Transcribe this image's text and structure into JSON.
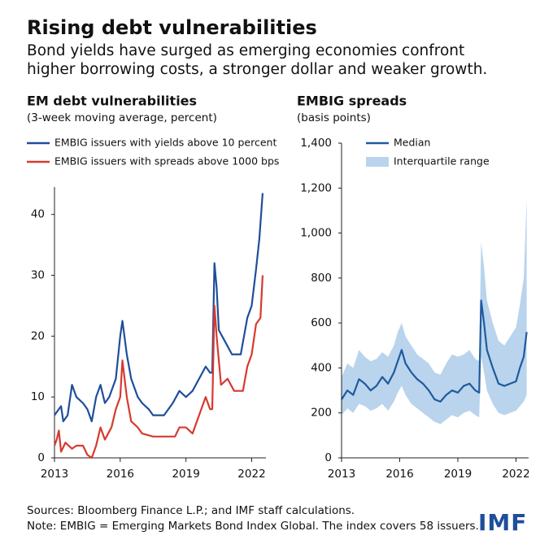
{
  "title": "Rising debt vulnerabilities",
  "subtitle": [
    "Bond yields have surged as emerging economies confront",
    "higher borrowing costs, a stronger dollar and weaker growth."
  ],
  "sources": "Sources: Bloomberg Finance L.P.; and IMF staff calculations.",
  "note": "Note: EMBIG = Emerging Markets Bond Index Global. The index covers 58 issuers.",
  "logo": "IMF",
  "chart_data": [
    {
      "type": "line",
      "title": "EM debt vulnerabilities",
      "subtitle": "(3-week moving average, percent)",
      "legend": "above",
      "xlim": [
        2013,
        2022.65
      ],
      "xticks": [
        2013,
        2016,
        2019,
        2022
      ],
      "ylim": [
        0,
        44.5
      ],
      "yticks": [
        0,
        10,
        20,
        30,
        40
      ],
      "series": [
        {
          "name": "EMBIG issuers with yields above 10 percent",
          "color": "#1f4e9a",
          "x": [
            2013,
            2013.3,
            2013.4,
            2013.6,
            2013.8,
            2014,
            2014.3,
            2014.5,
            2014.7,
            2014.9,
            2015.1,
            2015.3,
            2015.5,
            2015.8,
            2016,
            2016.1,
            2016.3,
            2016.5,
            2016.8,
            2017,
            2017.3,
            2017.5,
            2018,
            2018.4,
            2018.7,
            2019,
            2019.3,
            2019.6,
            2019.9,
            2020.1,
            2020.2,
            2020.3,
            2020.4,
            2020.5,
            2020.8,
            2021.1,
            2021.5,
            2021.8,
            2022,
            2022.2,
            2022.35,
            2022.5
          ],
          "values": [
            7,
            8.5,
            6,
            7,
            12,
            10,
            9,
            8,
            6,
            10,
            12,
            9,
            10,
            13,
            20,
            22.5,
            17,
            13,
            10,
            9,
            8,
            7,
            7,
            9,
            11,
            10,
            11,
            13,
            15,
            14,
            14,
            32,
            28,
            21,
            19,
            17,
            17,
            23,
            25,
            31,
            36,
            43.5
          ]
        },
        {
          "name": "EMBIG issuers with spreads above 1000 bps",
          "color": "#d63a2f",
          "x": [
            2013,
            2013.1,
            2013.2,
            2013.3,
            2013.5,
            2013.8,
            2014,
            2014.3,
            2014.5,
            2014.7,
            2014.9,
            2015.1,
            2015.3,
            2015.6,
            2015.8,
            2016,
            2016.1,
            2016.3,
            2016.5,
            2016.8,
            2017,
            2017.5,
            2018.5,
            2018.7,
            2019,
            2019.3,
            2019.6,
            2019.9,
            2020.1,
            2020.2,
            2020.3,
            2020.4,
            2020.6,
            2020.9,
            2021.2,
            2021.6,
            2021.8,
            2022,
            2022.2,
            2022.4,
            2022.5
          ],
          "values": [
            2,
            3,
            4.5,
            1,
            2.5,
            1.5,
            2,
            2,
            0.5,
            0,
            2,
            5,
            3,
            5,
            8,
            10,
            16,
            10,
            6,
            5,
            4,
            3.5,
            3.5,
            5,
            5,
            4,
            7,
            10,
            8,
            8,
            25,
            20,
            12,
            13,
            11,
            11,
            15,
            17,
            22,
            23,
            30
          ]
        }
      ]
    },
    {
      "type": "line",
      "title": "EMBIG spreads",
      "subtitle": "(basis points)",
      "legend": "top-left",
      "xlim": [
        2013,
        2022.65
      ],
      "xticks": [
        2013,
        2016,
        2019,
        2022
      ],
      "ylim": [
        0,
        1400
      ],
      "yticks": [
        0,
        200,
        400,
        600,
        800,
        {
          "value": 1000,
          "label": "1,000"
        },
        {
          "value": 1200,
          "label": "1,200"
        },
        {
          "value": 1400,
          "label": "1,400"
        }
      ],
      "x": [
        2013,
        2013.3,
        2013.6,
        2013.9,
        2014.2,
        2014.5,
        2014.8,
        2015.1,
        2015.4,
        2015.7,
        2015.9,
        2016.1,
        2016.3,
        2016.6,
        2016.9,
        2017.2,
        2017.5,
        2017.8,
        2018.1,
        2018.4,
        2018.7,
        2019,
        2019.3,
        2019.6,
        2019.9,
        2020.1,
        2020.2,
        2020.35,
        2020.5,
        2020.8,
        2021.1,
        2021.4,
        2021.7,
        2022,
        2022.2,
        2022.4,
        2022.55
      ],
      "series": [
        {
          "name": "Median",
          "color": "#1f5a9e",
          "values": [
            260,
            300,
            280,
            350,
            330,
            300,
            320,
            360,
            330,
            380,
            430,
            480,
            420,
            380,
            350,
            330,
            300,
            260,
            250,
            280,
            300,
            290,
            320,
            330,
            300,
            290,
            700,
            600,
            480,
            400,
            330,
            320,
            330,
            340,
            400,
            450,
            560
          ]
        },
        {
          "name": "Interquartile range",
          "color": "#b9d4ec",
          "low": [
            190,
            220,
            200,
            240,
            230,
            210,
            220,
            240,
            210,
            250,
            290,
            320,
            280,
            240,
            220,
            200,
            180,
            160,
            150,
            170,
            190,
            180,
            200,
            210,
            190,
            180,
            450,
            380,
            300,
            240,
            200,
            190,
            200,
            210,
            230,
            250,
            280
          ],
          "high": [
            360,
            420,
            400,
            480,
            450,
            430,
            440,
            470,
            450,
            500,
            560,
            600,
            540,
            500,
            460,
            440,
            420,
            380,
            370,
            420,
            460,
            450,
            460,
            480,
            440,
            430,
            960,
            850,
            700,
            600,
            520,
            500,
            540,
            580,
            680,
            800,
            1150
          ]
        }
      ]
    }
  ]
}
